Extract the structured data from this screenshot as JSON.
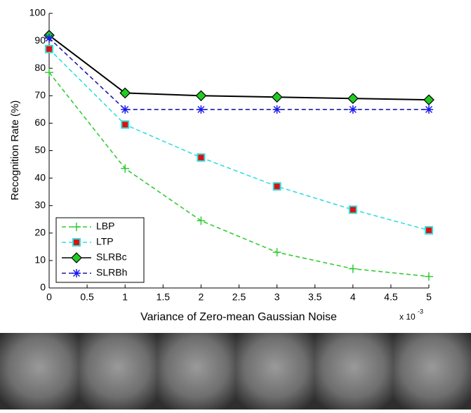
{
  "chart_data": {
    "type": "line",
    "y_label": "Recognition Rate (%)",
    "x_label": "Variance of Zero-mean Gaussian Noise",
    "x_scale_base": "x 10",
    "x_scale_exponent": "-3",
    "x": [
      0,
      1,
      2,
      3,
      4,
      5
    ],
    "xlim": [
      0,
      5
    ],
    "xticks": [
      0,
      0.5,
      1,
      1.5,
      2,
      2.5,
      3,
      3.5,
      4,
      4.5,
      5
    ],
    "ylim": [
      0,
      100
    ],
    "yticks": [
      0,
      10,
      20,
      30,
      40,
      50,
      60,
      70,
      80,
      90,
      100
    ],
    "legend": "lower left",
    "series": [
      {
        "name": "LBP",
        "color": "#33cc33",
        "dash": true,
        "marker": "plus",
        "marker_color": "#33cc33",
        "values": [
          78.5,
          43.5,
          24.5,
          13,
          7,
          4.2
        ]
      },
      {
        "name": "LTP",
        "color": "#33dddd",
        "dash": true,
        "marker": "square",
        "marker_color": "#dd1111",
        "values": [
          87,
          59.5,
          47.5,
          37,
          28.5,
          21
        ]
      },
      {
        "name": "SLRBc",
        "color": "#000000",
        "dash": false,
        "marker": "diamond",
        "marker_color": "#22cc22",
        "values": [
          92,
          71,
          70,
          69.5,
          69,
          68.5
        ]
      },
      {
        "name": "SLRBh",
        "color": "#1a1aaa",
        "dash": true,
        "marker": "asterisk",
        "marker_color": "#1a1aee",
        "values": [
          91,
          65,
          65,
          65,
          65,
          65
        ]
      }
    ]
  }
}
